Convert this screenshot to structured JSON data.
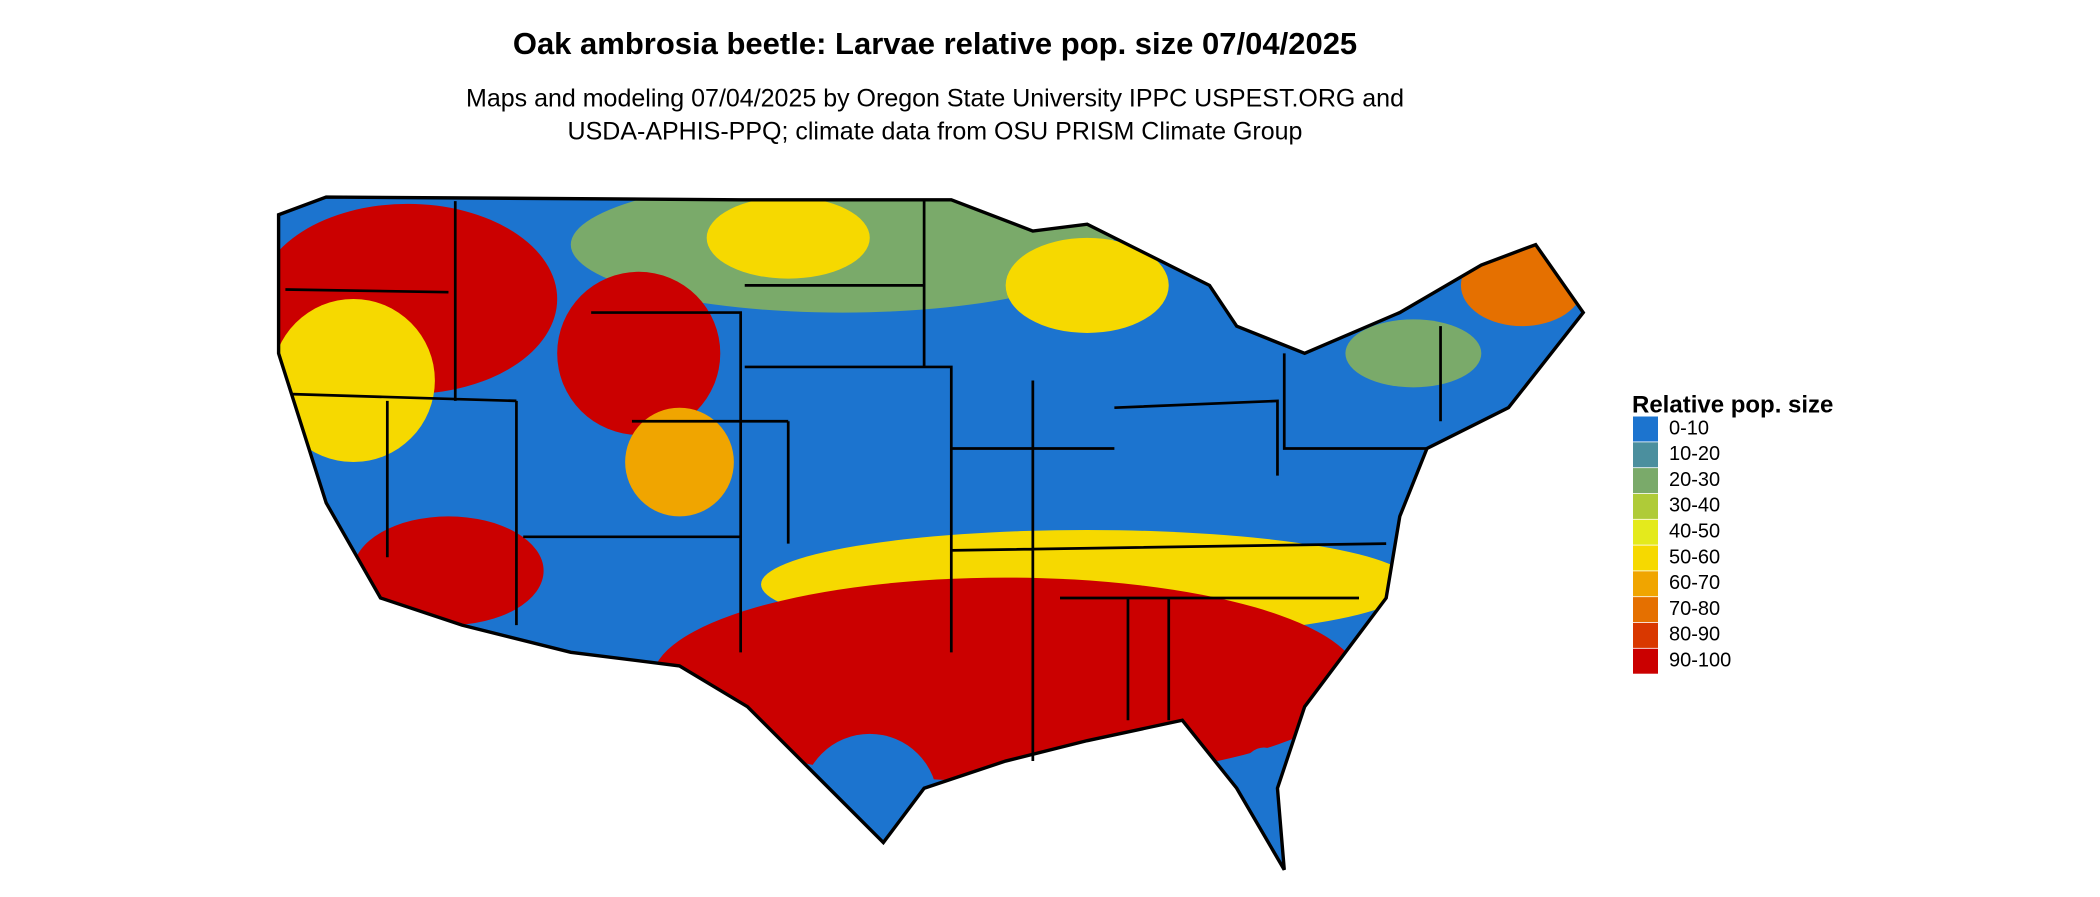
{
  "header": {
    "title": "Oak ambrosia beetle: Larvae relative pop. size 07/04/2025",
    "subtitle": [
      "Maps and modeling 07/04/2025 by Oregon State University IPPC USPEST.ORG and",
      "USDA-APHIS-PPQ; climate data from OSU PRISM Climate Group"
    ]
  },
  "legend": {
    "title": "Relative pop. size",
    "items": [
      {
        "label": "0-10",
        "color": "#1c74cf"
      },
      {
        "label": "10-20",
        "color": "#4b8f9e"
      },
      {
        "label": "20-30",
        "color": "#7aaa6a"
      },
      {
        "label": "30-40",
        "color": "#afcb38"
      },
      {
        "label": "40-50",
        "color": "#e4ea1c"
      },
      {
        "label": "50-60",
        "color": "#f6d900"
      },
      {
        "label": "60-70",
        "color": "#f0a500"
      },
      {
        "label": "70-80",
        "color": "#e57000"
      },
      {
        "label": "80-90",
        "color": "#d93800"
      },
      {
        "label": "90-100",
        "color": "#cb0000"
      }
    ]
  }
}
